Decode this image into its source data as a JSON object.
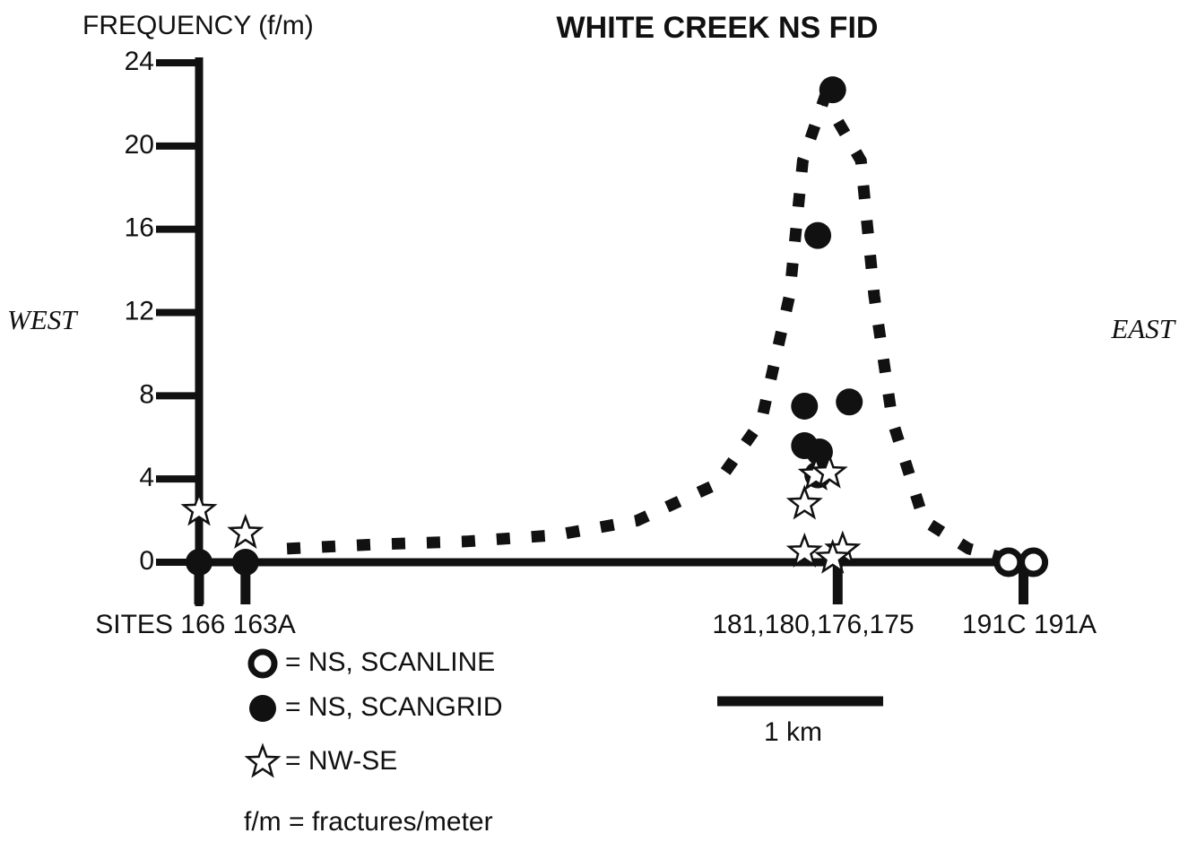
{
  "chart_data": {
    "type": "scatter",
    "title": "WHITE CREEK NS FID",
    "y_label": "FREQUENCY (f/m)",
    "west_label": "WEST",
    "east_label": "EAST",
    "ylim": [
      0,
      24
    ],
    "yticks": [
      0,
      4,
      8,
      12,
      16,
      20,
      24
    ],
    "xlim": [
      0,
      5.07
    ],
    "site_ticks": [
      0,
      0.28,
      3.85,
      4.97
    ],
    "site_labels": [
      "SITES 166 163A",
      "181,180,176,175",
      "191C 191A"
    ],
    "series": [
      {
        "name": "= NS, SCANLINE",
        "marker": "open-circle",
        "color": "#111111",
        "x": [
          4.88,
          5.03
        ],
        "values": [
          0,
          0
        ]
      },
      {
        "name": "= NS, SCANGRID",
        "marker": "filled-circle",
        "color": "#111111",
        "x": [
          0,
          0.28,
          3.65,
          3.92,
          3.65,
          3.74,
          3.73,
          3.82,
          3.73
        ],
        "values": [
          0,
          0,
          7.5,
          7.7,
          5.6,
          5.3,
          15.7,
          22.7,
          4.2
        ]
      },
      {
        "name": "= NW-SE",
        "marker": "star",
        "color": "#111111",
        "x": [
          0,
          0.28,
          3.65,
          3.72,
          3.8,
          3.65,
          3.88,
          3.82
        ],
        "values": [
          2.5,
          1.4,
          2.8,
          4.2,
          4.3,
          0.5,
          0.6,
          0.2
        ]
      },
      {
        "marker": "dashed-line",
        "color": "#111111",
        "x": [
          0.53,
          1.07,
          1.61,
          2.15,
          2.64,
          3.12,
          3.39,
          3.56,
          3.64,
          3.77,
          3.99,
          4.07,
          4.18,
          4.37,
          4.64,
          4.85
        ],
        "values": [
          0.65,
          0.86,
          1.0,
          1.3,
          2.0,
          3.75,
          6.8,
          12.8,
          19.3,
          22.3,
          19.3,
          12.8,
          6.8,
          2.0,
          0.65,
          0.2
        ]
      }
    ],
    "scale_bar": {
      "length": 1,
      "label": "1 km"
    },
    "footnote": "f/m = fractures/meter"
  }
}
